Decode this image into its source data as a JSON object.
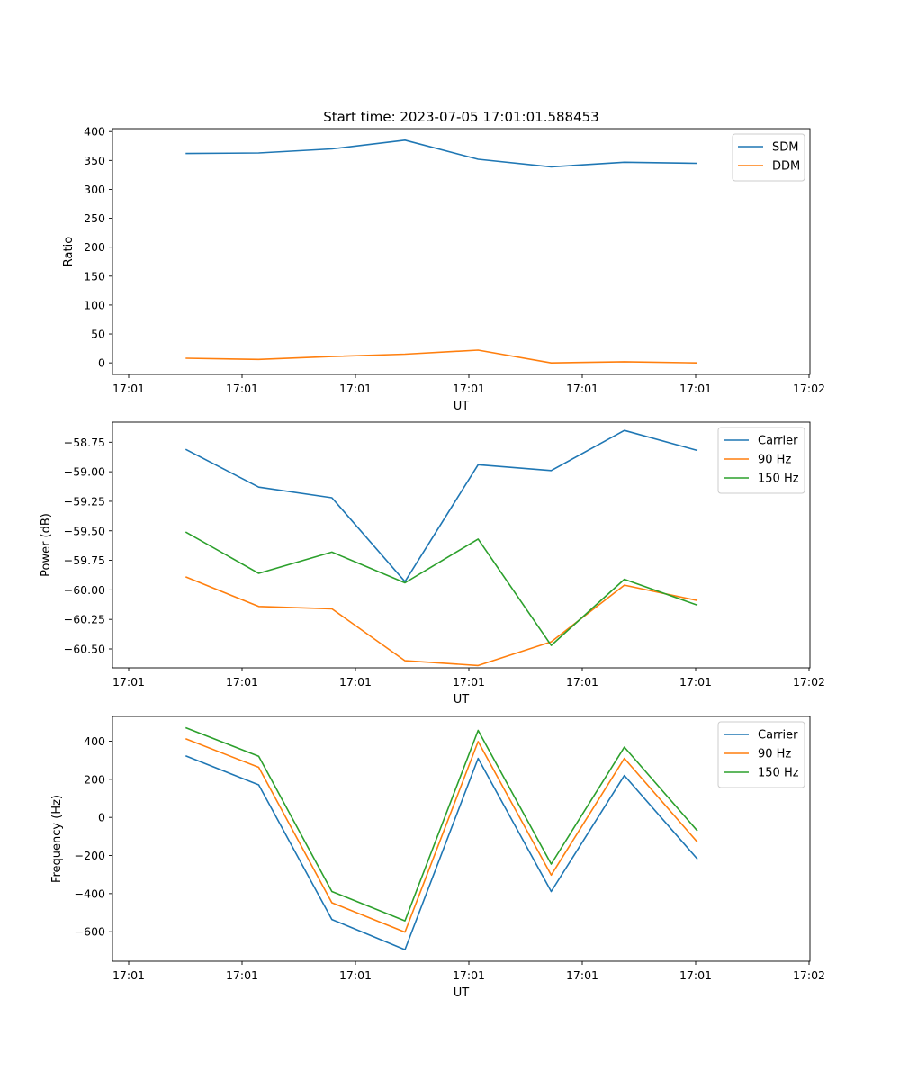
{
  "chart_data": [
    {
      "type": "line",
      "title": "Start time: 2023-07-05 17:01:01.588453",
      "xlabel": "UT",
      "ylabel": "Ratio",
      "x_ticks": [
        "17:01",
        "17:01",
        "17:01",
        "17:01",
        "17:01",
        "17:01",
        "17:02"
      ],
      "y_ticks": [
        "0",
        "50",
        "100",
        "150",
        "200",
        "250",
        "300",
        "350",
        "400"
      ],
      "y_tick_values": [
        0,
        50,
        100,
        150,
        200,
        250,
        300,
        350,
        400
      ],
      "x_range": [
        -0.15,
        6.05
      ],
      "ylim": [
        -20,
        405
      ],
      "x": [
        0.5,
        1.15,
        1.8,
        2.45,
        3.1,
        3.75,
        4.4,
        5.05
      ],
      "series": [
        {
          "name": "SDM",
          "color": "#1f77b4",
          "values": [
            362,
            363,
            370,
            385,
            352,
            339,
            347,
            345
          ]
        },
        {
          "name": "DDM",
          "color": "#ff7f0e",
          "values": [
            8,
            6,
            11,
            15,
            22,
            0,
            2,
            0
          ]
        }
      ],
      "legend": "upper right"
    },
    {
      "type": "line",
      "title": "",
      "xlabel": "UT",
      "ylabel": "Power (dB)",
      "x_ticks": [
        "17:01",
        "17:01",
        "17:01",
        "17:01",
        "17:01",
        "17:01",
        "17:02"
      ],
      "y_ticks": [
        "−60.50",
        "−60.25",
        "−60.00",
        "−59.75",
        "−59.50",
        "−59.25",
        "−59.00",
        "−58.75"
      ],
      "y_tick_values": [
        -60.5,
        -60.25,
        -60.0,
        -59.75,
        -59.5,
        -59.25,
        -59.0,
        -58.75
      ],
      "x_range": [
        -0.15,
        6.05
      ],
      "ylim": [
        -60.66,
        -58.58
      ],
      "x": [
        0.5,
        1.15,
        1.8,
        2.45,
        3.1,
        3.75,
        4.4,
        5.05
      ],
      "series": [
        {
          "name": "Carrier",
          "color": "#1f77b4",
          "values": [
            -58.81,
            -59.13,
            -59.22,
            -59.93,
            -58.94,
            -58.99,
            -58.65,
            -58.82
          ]
        },
        {
          "name": "90 Hz",
          "color": "#ff7f0e",
          "values": [
            -59.89,
            -60.14,
            -60.16,
            -60.6,
            -60.64,
            -60.44,
            -59.96,
            -60.09
          ]
        },
        {
          "name": "150 Hz",
          "color": "#2ca02c",
          "values": [
            -59.51,
            -59.86,
            -59.68,
            -59.94,
            -59.57,
            -60.47,
            -59.91,
            -60.13
          ]
        }
      ],
      "legend": "upper right"
    },
    {
      "type": "line",
      "title": "",
      "xlabel": "UT",
      "ylabel": "Frequency (Hz)",
      "x_ticks": [
        "17:01",
        "17:01",
        "17:01",
        "17:01",
        "17:01",
        "17:01",
        "17:02"
      ],
      "y_ticks": [
        "−600",
        "−400",
        "−200",
        "0",
        "200",
        "400"
      ],
      "y_tick_values": [
        -600,
        -400,
        -200,
        0,
        200,
        400
      ],
      "x_range": [
        -0.15,
        6.05
      ],
      "ylim": [
        -755,
        530
      ],
      "x": [
        0.5,
        1.15,
        1.8,
        2.45,
        3.1,
        3.75,
        4.4,
        5.05
      ],
      "series": [
        {
          "name": "Carrier",
          "color": "#1f77b4",
          "values": [
            323,
            171,
            -536,
            -694,
            310,
            -389,
            220,
            -219
          ]
        },
        {
          "name": "90 Hz",
          "color": "#ff7f0e",
          "values": [
            413,
            263,
            -448,
            -602,
            398,
            -303,
            310,
            -130
          ]
        },
        {
          "name": "150 Hz",
          "color": "#2ca02c",
          "values": [
            471,
            321,
            -389,
            -543,
            457,
            -245,
            369,
            -71
          ]
        }
      ],
      "legend": "upper right"
    }
  ]
}
